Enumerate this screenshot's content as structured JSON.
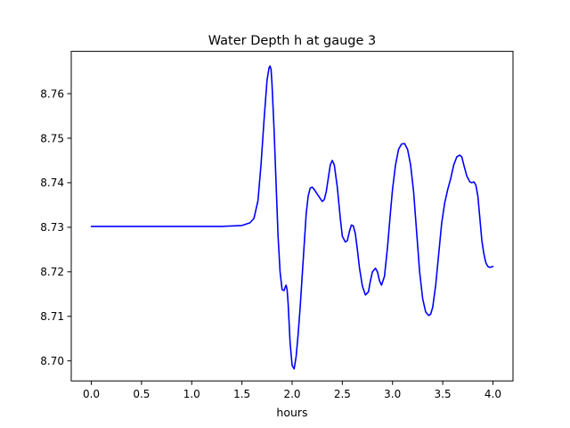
{
  "chart_data": {
    "type": "line",
    "title": "Water Depth h at gauge 3",
    "xlabel": "hours",
    "ylabel": "",
    "xlim": [
      -0.2,
      4.2
    ],
    "ylim": [
      8.6955,
      8.7695
    ],
    "xticks": [
      0.0,
      0.5,
      1.0,
      1.5,
      2.0,
      2.5,
      3.0,
      3.5,
      4.0
    ],
    "xtick_labels": [
      "0.0",
      "0.5",
      "1.0",
      "1.5",
      "2.0",
      "2.5",
      "3.0",
      "3.5",
      "4.0"
    ],
    "yticks": [
      8.7,
      8.71,
      8.72,
      8.73,
      8.74,
      8.75,
      8.76
    ],
    "ytick_labels": [
      "8.70",
      "8.71",
      "8.72",
      "8.73",
      "8.74",
      "8.75",
      "8.76"
    ],
    "grid": false,
    "legend": "none",
    "series": [
      {
        "color": "#0000ff",
        "x": [
          0.0,
          0.5,
          1.0,
          1.3,
          1.5,
          1.58,
          1.62,
          1.66,
          1.69,
          1.72,
          1.75,
          1.77,
          1.78,
          1.79,
          1.8,
          1.82,
          1.84,
          1.86,
          1.88,
          1.9,
          1.92,
          1.93,
          1.94,
          1.95,
          1.96,
          1.98,
          2.0,
          2.02,
          2.04,
          2.06,
          2.08,
          2.1,
          2.12,
          2.14,
          2.16,
          2.18,
          2.2,
          2.22,
          2.24,
          2.27,
          2.3,
          2.32,
          2.34,
          2.36,
          2.38,
          2.4,
          2.42,
          2.45,
          2.48,
          2.5,
          2.53,
          2.55,
          2.57,
          2.59,
          2.61,
          2.63,
          2.65,
          2.67,
          2.7,
          2.73,
          2.76,
          2.78,
          2.8,
          2.83,
          2.85,
          2.87,
          2.89,
          2.92,
          2.95,
          2.98,
          3.0,
          3.03,
          3.06,
          3.09,
          3.12,
          3.15,
          3.18,
          3.21,
          3.24,
          3.27,
          3.3,
          3.33,
          3.36,
          3.38,
          3.4,
          3.43,
          3.46,
          3.49,
          3.52,
          3.55,
          3.58,
          3.61,
          3.64,
          3.67,
          3.69,
          3.71,
          3.74,
          3.77,
          3.79,
          3.81,
          3.83,
          3.85,
          3.87,
          3.89,
          3.91,
          3.93,
          3.95,
          3.97,
          4.0
        ],
        "y": [
          8.7302,
          8.7302,
          8.7302,
          8.7302,
          8.7304,
          8.731,
          8.732,
          8.736,
          8.744,
          8.754,
          8.763,
          8.7658,
          8.7662,
          8.7655,
          8.762,
          8.752,
          8.74,
          8.728,
          8.72,
          8.716,
          8.7158,
          8.7165,
          8.717,
          8.716,
          8.713,
          8.704,
          8.699,
          8.6982,
          8.701,
          8.706,
          8.712,
          8.719,
          8.726,
          8.733,
          8.737,
          8.7388,
          8.739,
          8.7385,
          8.7378,
          8.7368,
          8.7358,
          8.7362,
          8.738,
          8.741,
          8.744,
          8.745,
          8.744,
          8.739,
          8.732,
          8.728,
          8.7267,
          8.727,
          8.729,
          8.7305,
          8.7303,
          8.7285,
          8.725,
          8.721,
          8.7168,
          8.7148,
          8.7155,
          8.718,
          8.72,
          8.7208,
          8.72,
          8.718,
          8.717,
          8.719,
          8.7255,
          8.7335,
          8.7385,
          8.744,
          8.7475,
          8.7487,
          8.7488,
          8.7475,
          8.744,
          8.738,
          8.729,
          8.72,
          8.714,
          8.711,
          8.7102,
          8.7105,
          8.712,
          8.717,
          8.724,
          8.731,
          8.7355,
          8.7385,
          8.741,
          8.744,
          8.7458,
          8.7462,
          8.7458,
          8.744,
          8.7415,
          8.7402,
          8.74,
          8.7402,
          8.7395,
          8.737,
          8.732,
          8.727,
          8.724,
          8.722,
          8.7212,
          8.721,
          8.7212
        ]
      }
    ]
  }
}
